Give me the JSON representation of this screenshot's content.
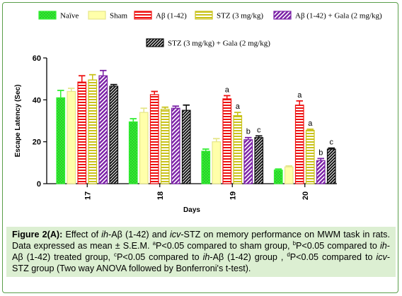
{
  "chart_data": {
    "type": "bar",
    "categories": [
      "17",
      "18",
      "19",
      "20"
    ],
    "xlabel": "Days",
    "ylabel": "Escape Latency (Sec)",
    "ylim": [
      0,
      60
    ],
    "yticks": [
      0,
      20,
      40,
      60
    ],
    "grid": false,
    "legend_position": "top",
    "series": [
      {
        "name": "Naïve",
        "color": "#33ee33",
        "pattern": "dots",
        "values": [
          41,
          29.5,
          15.5,
          6.5
        ],
        "errors": [
          3.5,
          1.5,
          1,
          0.5
        ]
      },
      {
        "name": "Sham",
        "color": "#ffffaa",
        "pattern": "solid",
        "values": [
          44,
          34,
          20,
          8
        ],
        "errors": [
          1.5,
          2,
          1.5,
          0.5
        ]
      },
      {
        "name": "Aβ (1-42)",
        "color": "#ee1111",
        "pattern": "hstripes",
        "values": [
          48.5,
          42.5,
          40.5,
          37.5
        ],
        "errors": [
          3,
          1.5,
          1.5,
          2
        ]
      },
      {
        "name": "STZ (3 mg/kg)",
        "color": "#c9c21a",
        "pattern": "hstripes",
        "values": [
          49.5,
          35.5,
          32.5,
          25.5
        ],
        "errors": [
          2.5,
          1,
          1.5,
          0.5
        ]
      },
      {
        "name": "Aβ (1-42) + Gala (2 mg/kg)",
        "color": "#7a1fa6",
        "pattern": "diag",
        "values": [
          51.5,
          36,
          21,
          11
        ],
        "errors": [
          2.5,
          1,
          1,
          1
        ]
      },
      {
        "name": "STZ (3 mg/kg) + Gala (2 mg/kg)",
        "color": "#111111",
        "pattern": "dense",
        "values": [
          46.5,
          35,
          22,
          16.5
        ],
        "errors": [
          0.8,
          2.5,
          0.8,
          0.5
        ]
      }
    ],
    "annotations": [
      {
        "category": "19",
        "series_index": 2,
        "text": "a"
      },
      {
        "category": "19",
        "series_index": 3,
        "text": "a"
      },
      {
        "category": "19",
        "series_index": 4,
        "text": "b"
      },
      {
        "category": "19",
        "series_index": 5,
        "text": "c"
      },
      {
        "category": "20",
        "series_index": 2,
        "text": "a"
      },
      {
        "category": "20",
        "series_index": 3,
        "text": "a"
      },
      {
        "category": "20",
        "series_index": 4,
        "text": "b"
      },
      {
        "category": "20",
        "series_index": 5,
        "text": "c"
      }
    ]
  },
  "caption": {
    "label": "Figure 2(A):",
    "parts": [
      {
        "t": " Effect of "
      },
      {
        "t": "ih",
        "i": true
      },
      {
        "t": "-Aβ (1-42) and "
      },
      {
        "t": "icv",
        "i": true
      },
      {
        "t": "-STZ on memory performance on MWM task in rats. Data expressed as mean ± S.E.M. "
      },
      {
        "t": "a",
        "sup": true
      },
      {
        "t": "P<0.05 compared to sham group, "
      },
      {
        "t": "b",
        "sup": true
      },
      {
        "t": "P<0.05 compared to "
      },
      {
        "t": "ih",
        "i": true
      },
      {
        "t": "-Aβ (1-42) treated group, "
      },
      {
        "t": "c",
        "sup": true
      },
      {
        "t": "P<0.05 compared to "
      },
      {
        "t": "ih",
        "i": true
      },
      {
        "t": "-Aβ (1-42) group , "
      },
      {
        "t": "d",
        "sup": true
      },
      {
        "t": "P<0.05 compared to "
      },
      {
        "t": "icv",
        "i": true
      },
      {
        "t": "-STZ group (Two way ANOVA followed by Bonferroni's t-test)."
      }
    ]
  }
}
